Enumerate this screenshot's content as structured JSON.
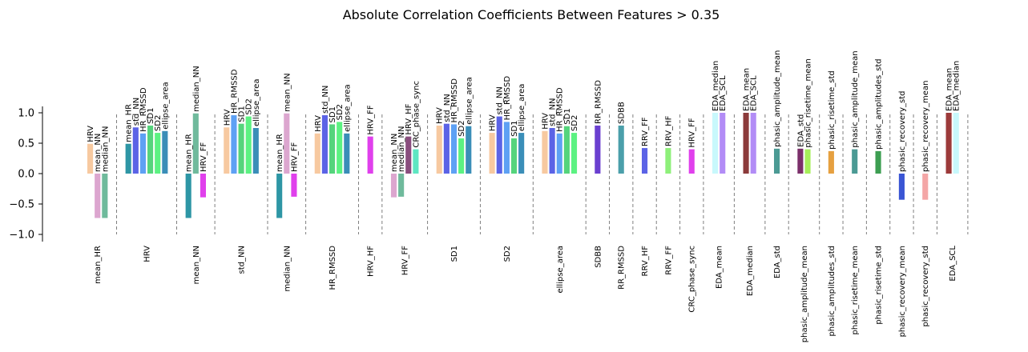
{
  "chart_data": {
    "type": "bar",
    "title": "Absolute Correlation Coefficients Between Features > 0.35",
    "ylim": [
      -1.1,
      1.1
    ],
    "yticks": [
      1.0,
      0.5,
      0.0,
      -0.5,
      -1.0
    ],
    "ytick_labels": [
      "1.0",
      "0.5",
      "0.0",
      "−0.5",
      "−1.0"
    ],
    "grid": false,
    "legend": "none",
    "groups": [
      {
        "feature": "mean_HR",
        "bars": [
          {
            "label": "HRV",
            "value": 0.49,
            "color": "#f7c9a0"
          },
          {
            "label": "mean_NN",
            "value": -0.73,
            "color": "#dca6cf"
          },
          {
            "label": "median_NN",
            "value": -0.73,
            "color": "#6fba9c"
          }
        ]
      },
      {
        "feature": "HRV",
        "bars": [
          {
            "label": "mean_HR",
            "value": 0.49,
            "color": "#2e96a5"
          },
          {
            "label": "std_NN",
            "value": 0.76,
            "color": "#5b63e6"
          },
          {
            "label": "HR_RMSSD",
            "value": 0.66,
            "color": "#5ea1f4"
          },
          {
            "label": "SD1",
            "value": 0.79,
            "color": "#55d47c"
          },
          {
            "label": "SD2",
            "value": 0.67,
            "color": "#5cf282"
          },
          {
            "label": "ellipse_area",
            "value": 0.7,
            "color": "#3a8eb8"
          }
        ]
      },
      {
        "feature": "mean_NN",
        "bars": [
          {
            "label": "mean_HR",
            "value": -0.73,
            "color": "#2e96a5"
          },
          {
            "label": "median_NN",
            "value": 0.99,
            "color": "#6fba9c"
          },
          {
            "label": "HRV_FF",
            "value": -0.39,
            "color": "#e040ec"
          }
        ]
      },
      {
        "feature": "std_NN",
        "bars": [
          {
            "label": "HRV",
            "value": 0.76,
            "color": "#f7c9a0"
          },
          {
            "label": "HR_RMSSD",
            "value": 0.96,
            "color": "#5ea1f4"
          },
          {
            "label": "SD1",
            "value": 0.82,
            "color": "#55d47c"
          },
          {
            "label": "SD2",
            "value": 0.94,
            "color": "#5cf282"
          },
          {
            "label": "ellipse_area",
            "value": 0.75,
            "color": "#3a8eb8"
          }
        ]
      },
      {
        "feature": "median_NN",
        "bars": [
          {
            "label": "mean_HR",
            "value": -0.73,
            "color": "#2e96a5"
          },
          {
            "label": "mean_NN",
            "value": 0.99,
            "color": "#dca6cf"
          },
          {
            "label": "HRV_FF",
            "value": -0.38,
            "color": "#e040ec"
          }
        ]
      },
      {
        "feature": "HR_RMSSD",
        "bars": [
          {
            "label": "HRV",
            "value": 0.66,
            "color": "#f7c9a0"
          },
          {
            "label": "std_NN",
            "value": 0.96,
            "color": "#5b63e6"
          },
          {
            "label": "SD1",
            "value": 0.81,
            "color": "#55d47c"
          },
          {
            "label": "SD2",
            "value": 0.85,
            "color": "#5cf282"
          },
          {
            "label": "ellipse_area",
            "value": 0.66,
            "color": "#3a8eb8"
          }
        ]
      },
      {
        "feature": "HRV_HF",
        "bars": [
          {
            "label": "HRV_FF",
            "value": 0.61,
            "color": "#e040ec"
          }
        ]
      },
      {
        "feature": "HRV_FF",
        "bars": [
          {
            "label": "mean_NN",
            "value": -0.39,
            "color": "#dca6cf"
          },
          {
            "label": "median_NN",
            "value": -0.38,
            "color": "#6fba9c"
          },
          {
            "label": "HRV_HF",
            "value": 0.61,
            "color": "#8a4d7e"
          },
          {
            "label": "CRC_phase_sync",
            "value": 0.4,
            "color": "#5ee6c2"
          }
        ]
      },
      {
        "feature": "SD1",
        "bars": [
          {
            "label": "HRV",
            "value": 0.79,
            "color": "#f7c9a0"
          },
          {
            "label": "std_NN",
            "value": 0.82,
            "color": "#5b63e6"
          },
          {
            "label": "HR_RMSSD",
            "value": 0.81,
            "color": "#5ea1f4"
          },
          {
            "label": "SD2",
            "value": 0.58,
            "color": "#5cf282"
          },
          {
            "label": "ellipse_area",
            "value": 0.78,
            "color": "#3a8eb8"
          }
        ]
      },
      {
        "feature": "SD2",
        "bars": [
          {
            "label": "HRV",
            "value": 0.67,
            "color": "#f7c9a0"
          },
          {
            "label": "std_NN",
            "value": 0.94,
            "color": "#5b63e6"
          },
          {
            "label": "HR_RMSSD",
            "value": 0.85,
            "color": "#5ea1f4"
          },
          {
            "label": "SD1",
            "value": 0.58,
            "color": "#55d47c"
          },
          {
            "label": "ellipse_area",
            "value": 0.67,
            "color": "#3a8eb8"
          }
        ]
      },
      {
        "feature": "ellipse_area",
        "bars": [
          {
            "label": "HRV",
            "value": 0.7,
            "color": "#f7c9a0"
          },
          {
            "label": "std_NN",
            "value": 0.75,
            "color": "#5b63e6"
          },
          {
            "label": "HR_RMSSD",
            "value": 0.66,
            "color": "#5ea1f4"
          },
          {
            "label": "SD1",
            "value": 0.78,
            "color": "#55d47c"
          },
          {
            "label": "SD2",
            "value": 0.67,
            "color": "#5cf282"
          }
        ]
      },
      {
        "feature": "SDBB",
        "bars": [
          {
            "label": "RR_RMSSD",
            "value": 0.79,
            "color": "#6a3fd0"
          }
        ]
      },
      {
        "feature": "RR_RMSSD",
        "bars": [
          {
            "label": "SDBB",
            "value": 0.79,
            "color": "#4b9faa"
          }
        ]
      },
      {
        "feature": "RRV_HF",
        "bars": [
          {
            "label": "RRV_FF",
            "value": 0.42,
            "color": "#5b63e6"
          }
        ]
      },
      {
        "feature": "RRV_FF",
        "bars": [
          {
            "label": "RRV_HF",
            "value": 0.42,
            "color": "#8ef07a"
          }
        ]
      },
      {
        "feature": "CRC_phase_sync",
        "bars": [
          {
            "label": "HRV_FF",
            "value": 0.4,
            "color": "#e040ec"
          }
        ]
      },
      {
        "feature": "EDA_mean",
        "bars": [
          {
            "label": "EDA_median",
            "value": 1.0,
            "color": "#c8f8fc"
          },
          {
            "label": "EDA_SCL",
            "value": 1.0,
            "color": "#b28cf6"
          }
        ]
      },
      {
        "feature": "EDA_median",
        "bars": [
          {
            "label": "EDA_mean",
            "value": 1.0,
            "color": "#8b3a3a"
          },
          {
            "label": "EDA_SCL",
            "value": 1.0,
            "color": "#b28cf6"
          }
        ]
      },
      {
        "feature": "EDA_std",
        "bars": [
          {
            "label": "phasic_amplitude_mean",
            "value": 0.41,
            "color": "#4b9a94"
          }
        ]
      },
      {
        "feature": "phasic_amplitude_mean",
        "bars": [
          {
            "label": "EDA_std",
            "value": 0.41,
            "color": "#7b2f6a"
          },
          {
            "label": "phasic_risetime_mean",
            "value": 0.4,
            "color": "#a6ee5a"
          }
        ]
      },
      {
        "feature": "phasic_amplitudes_std",
        "bars": [
          {
            "label": "phasic_risetime_std",
            "value": 0.37,
            "color": "#e6a040"
          }
        ]
      },
      {
        "feature": "phasic_risetime_mean",
        "bars": [
          {
            "label": "phasic_amplitude_mean",
            "value": 0.4,
            "color": "#4b9a94"
          }
        ]
      },
      {
        "feature": "phasic_risetime_std",
        "bars": [
          {
            "label": "phasic_amplitudes_std",
            "value": 0.37,
            "color": "#3d9e52"
          }
        ]
      },
      {
        "feature": "phasic_recovery_mean",
        "bars": [
          {
            "label": "phasic_recovery_std",
            "value": -0.43,
            "color": "#3a55d4"
          }
        ]
      },
      {
        "feature": "phasic_recovery_std",
        "bars": [
          {
            "label": "phasic_recovery_mean",
            "value": -0.43,
            "color": "#f4a6a6"
          }
        ]
      },
      {
        "feature": "EDA_SCL",
        "bars": [
          {
            "label": "EDA_mean",
            "value": 1.0,
            "color": "#9c3a3a"
          },
          {
            "label": "EDA_median",
            "value": 1.0,
            "color": "#c8f8fc"
          }
        ]
      }
    ]
  }
}
